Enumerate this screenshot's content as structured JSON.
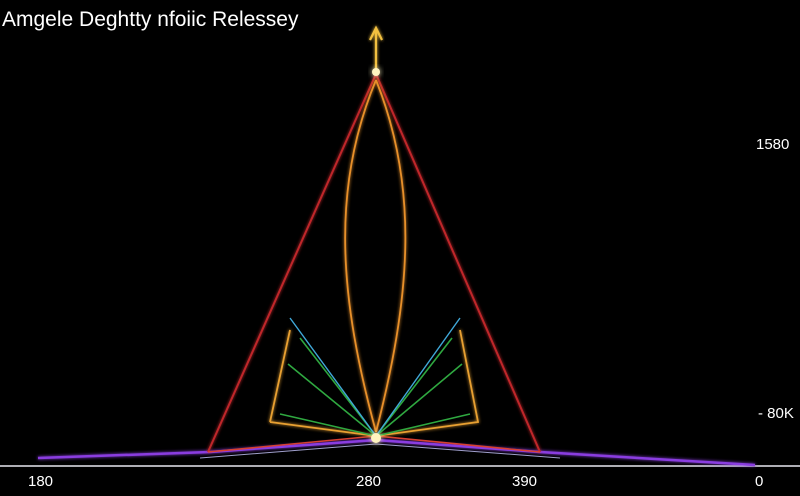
{
  "chart_data": {
    "type": "line",
    "title": "Amgele Deghtty nfoiic Relessey",
    "xlabel": "",
    "ylabel": "",
    "x_tick_labels": [
      "180",
      "280",
      "390",
      "0"
    ],
    "y_tick_labels": [
      "1580",
      "- 80K"
    ],
    "grid": false,
    "legend": "none",
    "background": "#000000",
    "colors": {
      "red": "#c0282a",
      "orange": "#f0a030",
      "gold": "#f2c040",
      "purple": "#9040e0",
      "green": "#30b040",
      "cyan": "#40a8d8",
      "white": "#ffffff"
    }
  }
}
